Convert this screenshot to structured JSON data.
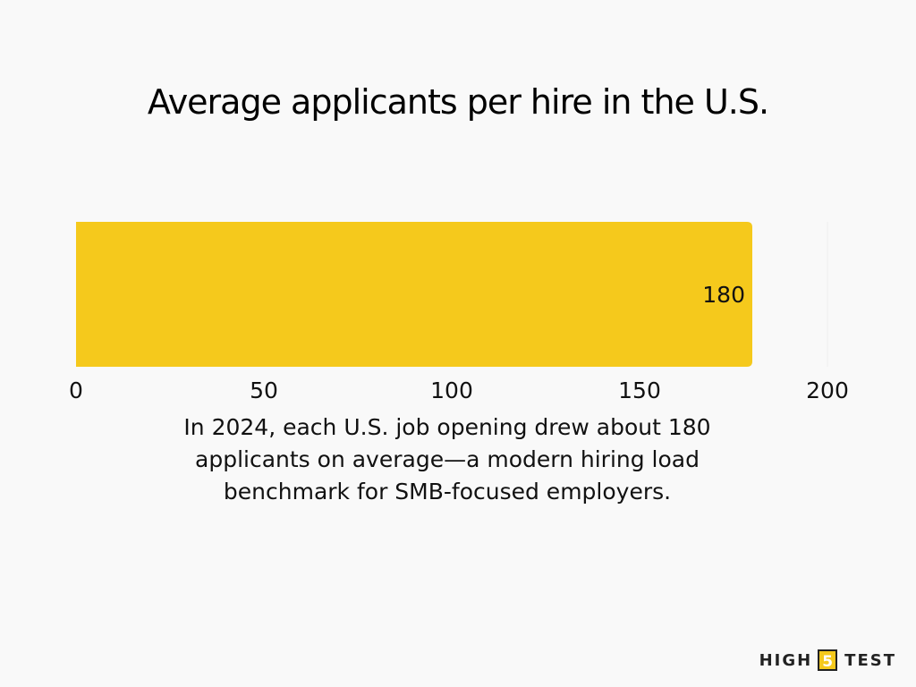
{
  "chart_data": {
    "type": "bar",
    "orientation": "horizontal",
    "title": "Average applicants per hire in the U.S.",
    "categories": [
      ""
    ],
    "values": [
      180
    ],
    "data_labels": [
      "180"
    ],
    "xlim": [
      0,
      200
    ],
    "xticks": [
      0,
      50,
      100,
      150,
      200
    ],
    "xtick_labels": [
      "0",
      "50",
      "100",
      "150",
      "200"
    ],
    "xlabel": "",
    "ylabel": "",
    "grid": false,
    "bar_color": "#f5c91c"
  },
  "caption": "In 2024, each U.S. job opening drew about 180 applicants on average—a modern hiring load benchmark for SMB-focused employers.",
  "logo": {
    "prefix": "HIGH",
    "number": "5",
    "suffix": "TEST"
  },
  "colors": {
    "background": "#f9f9f9",
    "bar": "#f5c91c",
    "text": "#111111"
  }
}
